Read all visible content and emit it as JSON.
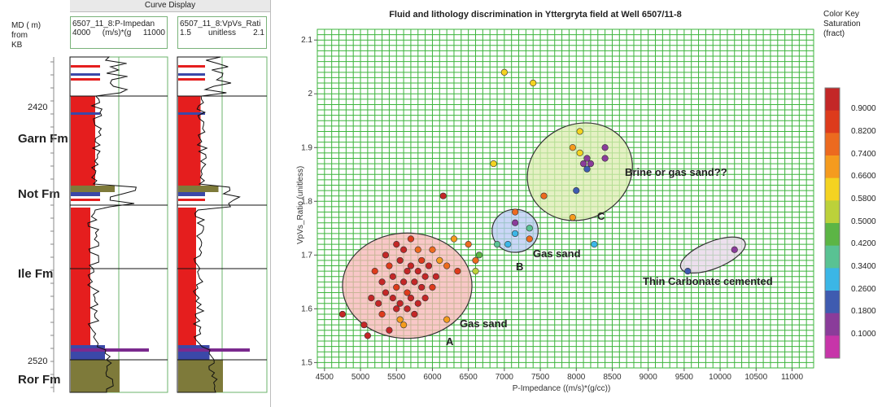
{
  "log_panel": {
    "title": "Curve Display",
    "md_header": [
      "MD ( m)",
      "from",
      "KB"
    ],
    "track1": {
      "name": "6507_11_8:P-Impedan",
      "min": "4000",
      "unit": "(m/s)*(g",
      "max": "11000"
    },
    "track2": {
      "name": "6507_11_8:VpVs_Rati",
      "min": "1.5",
      "unit": "unitless",
      "max": "2.1"
    },
    "depths": [
      "2420",
      "2520"
    ],
    "formations": [
      "Garn Fm",
      "Not Fm",
      "Ile Fm",
      "Ror Fm"
    ],
    "colors": {
      "red": "#e51e1e",
      "blue": "#3b48a8",
      "purple": "#7b2a8e",
      "olive": "#7e7a3a",
      "track_border": "#6bb36b"
    }
  },
  "chart_data": {
    "type": "scatter",
    "title": "Fluid and lithology discrimination in Yttergryta field at Well 6507/11-8",
    "xlabel": "P-Impedance ((m/s)*(g/cc))",
    "ylabel": "VpVs_Ratio (unitless)",
    "xlim": [
      4400,
      11300
    ],
    "ylim": [
      1.49,
      2.12
    ],
    "xticks": [
      "4500",
      "5000",
      "5500",
      "6000",
      "6500",
      "7000",
      "7500",
      "8000",
      "8500",
      "9000",
      "9500",
      "10000",
      "10500",
      "11000"
    ],
    "yticks": [
      "1.5",
      "1.6",
      "1.7",
      "1.8",
      "1.9",
      "2",
      "2.1"
    ],
    "grid": true,
    "grid_color": "#3cb43c",
    "color_key": {
      "title": [
        "Color Key",
        "Saturation",
        "(fract)"
      ],
      "labels": [
        "0.9000",
        "0.8200",
        "0.7400",
        "0.6600",
        "0.5800",
        "0.5000",
        "0.4200",
        "0.3400",
        "0.2600",
        "0.1800",
        "0.1000"
      ],
      "colors": [
        "#c32727",
        "#dd3b1c",
        "#ec6a1f",
        "#f59b1e",
        "#f4d321",
        "#bcd13a",
        "#5cb545",
        "#59c293",
        "#3bb6e6",
        "#3f5bb0",
        "#8a3c9a",
        "#c735a9"
      ]
    },
    "clusters": [
      {
        "label": "A",
        "note": "Gas sand",
        "cx": 5650,
        "cy": 1.643,
        "rx": 900,
        "ry": 0.098,
        "fill": "#f7b5b5"
      },
      {
        "label": "B",
        "note": "Gas sand",
        "cx": 7150,
        "cy": 1.745,
        "rx": 320,
        "ry": 0.04,
        "fill": "#b9c9f4"
      },
      {
        "label": "C",
        "note": "Brine or gas sand??",
        "cx": 8050,
        "cy": 1.855,
        "rx": 750,
        "ry": 0.088,
        "fill": "#dcecb0"
      },
      {
        "label": "",
        "note": "Thin Carbonate cemented",
        "cx": 9900,
        "cy": 1.7,
        "rx": 480,
        "ry": 0.025,
        "fill": "#e7d6e8"
      }
    ],
    "points": [
      {
        "x": 4750,
        "y": 1.59,
        "c": "#c32727"
      },
      {
        "x": 5050,
        "y": 1.57,
        "c": "#c32727"
      },
      {
        "x": 5100,
        "y": 1.55,
        "c": "#c32727"
      },
      {
        "x": 5150,
        "y": 1.62,
        "c": "#c32727"
      },
      {
        "x": 5200,
        "y": 1.67,
        "c": "#dd3b1c"
      },
      {
        "x": 5250,
        "y": 1.61,
        "c": "#c32727"
      },
      {
        "x": 5300,
        "y": 1.65,
        "c": "#c32727"
      },
      {
        "x": 5300,
        "y": 1.59,
        "c": "#dd3b1c"
      },
      {
        "x": 5350,
        "y": 1.7,
        "c": "#c32727"
      },
      {
        "x": 5350,
        "y": 1.63,
        "c": "#c32727"
      },
      {
        "x": 5400,
        "y": 1.56,
        "c": "#c32727"
      },
      {
        "x": 5400,
        "y": 1.68,
        "c": "#dd3b1c"
      },
      {
        "x": 5450,
        "y": 1.62,
        "c": "#c32727"
      },
      {
        "x": 5450,
        "y": 1.66,
        "c": "#c32727"
      },
      {
        "x": 5500,
        "y": 1.6,
        "c": "#c32727"
      },
      {
        "x": 5500,
        "y": 1.64,
        "c": "#dd3b1c"
      },
      {
        "x": 5500,
        "y": 1.72,
        "c": "#c32727"
      },
      {
        "x": 5550,
        "y": 1.58,
        "c": "#f59b1e"
      },
      {
        "x": 5550,
        "y": 1.69,
        "c": "#c32727"
      },
      {
        "x": 5550,
        "y": 1.61,
        "c": "#c32727"
      },
      {
        "x": 5600,
        "y": 1.65,
        "c": "#c32727"
      },
      {
        "x": 5600,
        "y": 1.57,
        "c": "#f59b1e"
      },
      {
        "x": 5600,
        "y": 1.71,
        "c": "#c32727"
      },
      {
        "x": 5650,
        "y": 1.63,
        "c": "#dd3b1c"
      },
      {
        "x": 5650,
        "y": 1.67,
        "c": "#c32727"
      },
      {
        "x": 5650,
        "y": 1.6,
        "c": "#c32727"
      },
      {
        "x": 5700,
        "y": 1.68,
        "c": "#c32727"
      },
      {
        "x": 5700,
        "y": 1.62,
        "c": "#c32727"
      },
      {
        "x": 5700,
        "y": 1.73,
        "c": "#dd3b1c"
      },
      {
        "x": 5750,
        "y": 1.65,
        "c": "#c32727"
      },
      {
        "x": 5750,
        "y": 1.59,
        "c": "#c32727"
      },
      {
        "x": 5800,
        "y": 1.67,
        "c": "#c32727"
      },
      {
        "x": 5800,
        "y": 1.71,
        "c": "#ec6a1f"
      },
      {
        "x": 5800,
        "y": 1.61,
        "c": "#c32727"
      },
      {
        "x": 5850,
        "y": 1.64,
        "c": "#c32727"
      },
      {
        "x": 5850,
        "y": 1.69,
        "c": "#dd3b1c"
      },
      {
        "x": 5900,
        "y": 1.66,
        "c": "#c32727"
      },
      {
        "x": 5900,
        "y": 1.62,
        "c": "#c32727"
      },
      {
        "x": 5950,
        "y": 1.68,
        "c": "#c32727"
      },
      {
        "x": 6000,
        "y": 1.64,
        "c": "#dd3b1c"
      },
      {
        "x": 6000,
        "y": 1.71,
        "c": "#ec6a1f"
      },
      {
        "x": 6050,
        "y": 1.66,
        "c": "#c32727"
      },
      {
        "x": 6100,
        "y": 1.69,
        "c": "#f59b1e"
      },
      {
        "x": 6150,
        "y": 1.81,
        "c": "#c32727"
      },
      {
        "x": 6200,
        "y": 1.68,
        "c": "#ec6a1f"
      },
      {
        "x": 6200,
        "y": 1.58,
        "c": "#f59b1e"
      },
      {
        "x": 6300,
        "y": 1.73,
        "c": "#f59b1e"
      },
      {
        "x": 6350,
        "y": 1.67,
        "c": "#dd3b1c"
      },
      {
        "x": 6500,
        "y": 1.72,
        "c": "#ec6a1f"
      },
      {
        "x": 6600,
        "y": 1.69,
        "c": "#ec6a1f"
      },
      {
        "x": 6600,
        "y": 1.67,
        "c": "#bcd13a"
      },
      {
        "x": 6650,
        "y": 1.7,
        "c": "#5cb545"
      },
      {
        "x": 6850,
        "y": 1.87,
        "c": "#f4d321"
      },
      {
        "x": 7000,
        "y": 2.04,
        "c": "#f4d321"
      },
      {
        "x": 7400,
        "y": 2.02,
        "c": "#f4d321"
      },
      {
        "x": 6900,
        "y": 1.72,
        "c": "#59c293"
      },
      {
        "x": 7050,
        "y": 1.72,
        "c": "#3bb6e6"
      },
      {
        "x": 7150,
        "y": 1.74,
        "c": "#3bb6e6"
      },
      {
        "x": 7150,
        "y": 1.78,
        "c": "#ec6a1f"
      },
      {
        "x": 7150,
        "y": 1.76,
        "c": "#8a3c9a"
      },
      {
        "x": 7350,
        "y": 1.75,
        "c": "#59c293"
      },
      {
        "x": 7350,
        "y": 1.73,
        "c": "#ec6a1f"
      },
      {
        "x": 7550,
        "y": 1.81,
        "c": "#ec6a1f"
      },
      {
        "x": 7950,
        "y": 1.9,
        "c": "#f59b1e"
      },
      {
        "x": 7950,
        "y": 1.77,
        "c": "#f59b1e"
      },
      {
        "x": 8000,
        "y": 1.82,
        "c": "#3f5bb0"
      },
      {
        "x": 8050,
        "y": 1.89,
        "c": "#f4d321"
      },
      {
        "x": 8050,
        "y": 1.93,
        "c": "#f4d321"
      },
      {
        "x": 8100,
        "y": 1.87,
        "c": "#8a3c9a"
      },
      {
        "x": 8150,
        "y": 1.88,
        "c": "#8a3c9a"
      },
      {
        "x": 8150,
        "y": 1.86,
        "c": "#3f5bb0"
      },
      {
        "x": 8200,
        "y": 1.87,
        "c": "#8a3c9a"
      },
      {
        "x": 8250,
        "y": 1.72,
        "c": "#3bb6e6"
      },
      {
        "x": 8400,
        "y": 1.9,
        "c": "#8a3c9a"
      },
      {
        "x": 8400,
        "y": 1.88,
        "c": "#8a3c9a"
      },
      {
        "x": 9550,
        "y": 1.67,
        "c": "#3f5bb0"
      },
      {
        "x": 10200,
        "y": 1.71,
        "c": "#8a3c9a"
      }
    ]
  }
}
